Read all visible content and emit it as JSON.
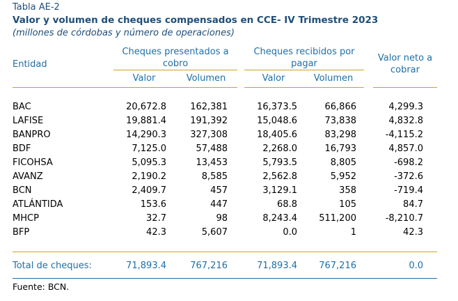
{
  "table_tag": "Tabla AE-2",
  "title": "Valor y volumen de cheques compensados en CCE- IV Trimestre 2023",
  "subtitle": "(millones de córdobas y número de operaciones)",
  "headers": {
    "entity": "Entidad",
    "presented_line1": "Cheques presentados a",
    "presented_line2": "cobro",
    "received_line1": "Cheques recibidos por",
    "received_line2": "pagar",
    "net_line1": "Valor neto a",
    "net_line2": "cobrar",
    "value": "Valor",
    "volume": "Volumen"
  },
  "rows": [
    {
      "entity": "BAC",
      "pres_value": "20,672.8",
      "pres_volume": "162,381",
      "rec_value": "16,373.5",
      "rec_volume": "66,866",
      "net": "4,299.3"
    },
    {
      "entity": "LAFISE",
      "pres_value": "19,881.4",
      "pres_volume": "191,392",
      "rec_value": "15,048.6",
      "rec_volume": "73,838",
      "net": "4,832.8"
    },
    {
      "entity": "BANPRO",
      "pres_value": "14,290.3",
      "pres_volume": "327,308",
      "rec_value": "18,405.6",
      "rec_volume": "83,298",
      "net": "-4,115.2"
    },
    {
      "entity": "BDF",
      "pres_value": "7,125.0",
      "pres_volume": "57,488",
      "rec_value": "2,268.0",
      "rec_volume": "16,793",
      "net": "4,857.0"
    },
    {
      "entity": "FICOHSA",
      "pres_value": "5,095.3",
      "pres_volume": "13,453",
      "rec_value": "5,793.5",
      "rec_volume": "8,805",
      "net": "-698.2"
    },
    {
      "entity": "AVANZ",
      "pres_value": "2,190.2",
      "pres_volume": "8,585",
      "rec_value": "2,562.8",
      "rec_volume": "5,952",
      "net": "-372.6"
    },
    {
      "entity": "BCN",
      "pres_value": "2,409.7",
      "pres_volume": "457",
      "rec_value": "3,129.1",
      "rec_volume": "358",
      "net": "-719.4"
    },
    {
      "entity": "ATLÁNTIDA",
      "pres_value": "153.6",
      "pres_volume": "447",
      "rec_value": "68.8",
      "rec_volume": "105",
      "net": "84.7"
    },
    {
      "entity": "MHCP",
      "pres_value": "32.7",
      "pres_volume": "98",
      "rec_value": "8,243.4",
      "rec_volume": "511,200",
      "net": "-8,210.7"
    },
    {
      "entity": "BFP",
      "pres_value": "42.3",
      "pres_volume": "5,607",
      "rec_value": "0.0",
      "rec_volume": "1",
      "net": "42.3"
    }
  ],
  "total": {
    "label": "Total de cheques:",
    "pres_value": "71,893.4",
    "pres_volume": "767,216",
    "rec_value": "71,893.4",
    "rec_volume": "767,216",
    "net": "0.0"
  },
  "source": "Fuente: BCN."
}
